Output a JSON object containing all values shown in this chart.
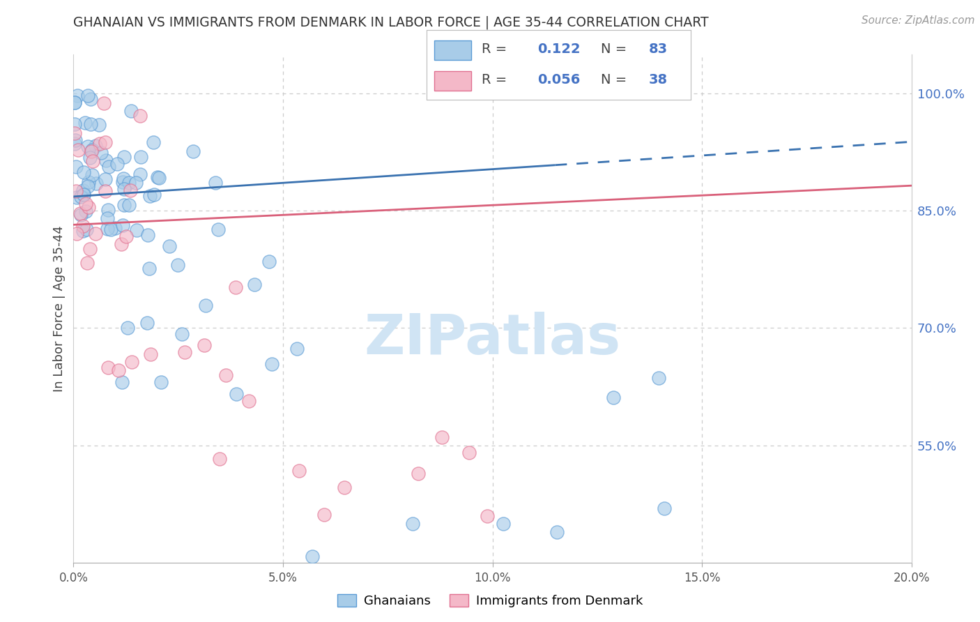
{
  "title": "GHANAIAN VS IMMIGRANTS FROM DENMARK IN LABOR FORCE | AGE 35-44 CORRELATION CHART",
  "source": "Source: ZipAtlas.com",
  "ylabel": "In Labor Force | Age 35-44",
  "blue_r": "0.122",
  "blue_n": "83",
  "pink_r": "0.056",
  "pink_n": "38",
  "blue_fill": "#a8cce8",
  "blue_edge": "#5b9bd5",
  "pink_fill": "#f4b8c8",
  "pink_edge": "#e07090",
  "blue_line_color": "#3a72b0",
  "pink_line_color": "#d9607a",
  "grid_color": "#cccccc",
  "right_axis_color": "#4472c4",
  "title_color": "#333333",
  "source_color": "#999999",
  "watermark_color": "#d0e4f4",
  "ytick_vals": [
    0.55,
    0.7,
    0.85,
    1.0
  ],
  "ytick_labels": [
    "55.0%",
    "70.0%",
    "85.0%",
    "100.0%"
  ],
  "xtick_vals": [
    0.0,
    0.05,
    0.1,
    0.15,
    0.2
  ],
  "xtick_labels": [
    "0.0%",
    "5.0%",
    "10.0%",
    "15.0%",
    "20.0%"
  ],
  "xlim": [
    0.0,
    0.2
  ],
  "ylim": [
    0.4,
    1.05
  ],
  "blue_line_solid_end": 0.115,
  "blue_intercept": 0.868,
  "blue_slope": 0.35,
  "pink_intercept": 0.832,
  "pink_slope": 0.25
}
